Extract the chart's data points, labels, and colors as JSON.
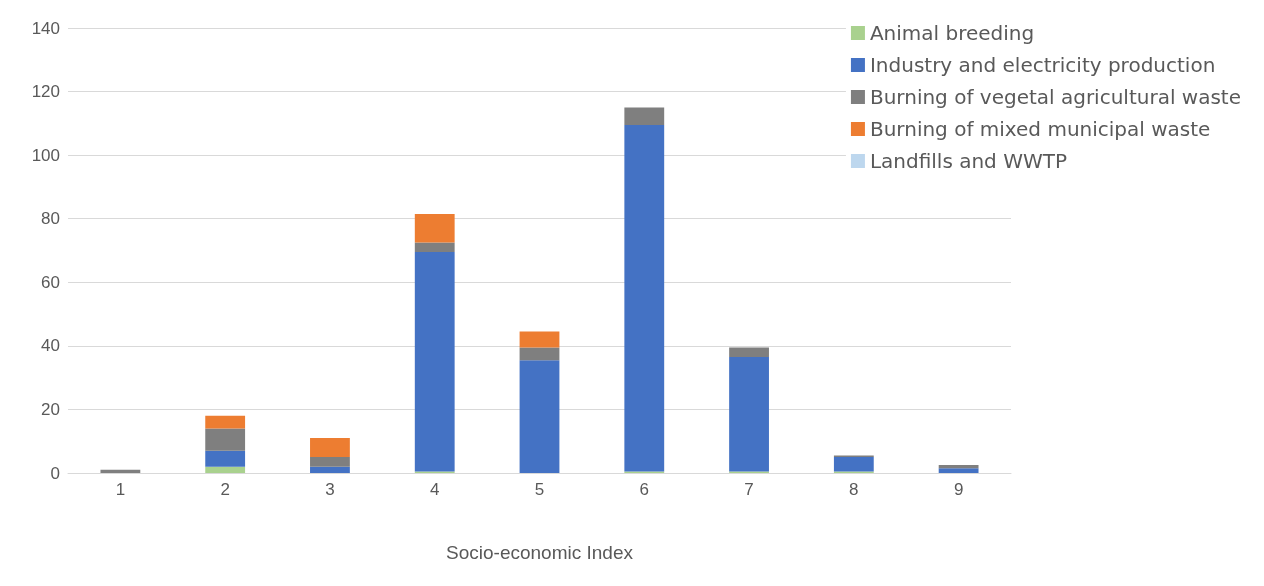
{
  "chart_data": {
    "type": "bar",
    "stacked": true,
    "xlabel": "Socio-economic Index",
    "categories": [
      "1",
      "2",
      "3",
      "4",
      "5",
      "6",
      "7",
      "8",
      "9"
    ],
    "series": [
      {
        "name": "Animal breeding",
        "color": "#a9d18e",
        "values": [
          0,
          2,
          0,
          0.5,
          0,
          0.5,
          0.5,
          0.5,
          0
        ]
      },
      {
        "name": "Industry and electricity production",
        "color": "#4472c4",
        "values": [
          0,
          5,
          2,
          69,
          35.5,
          109,
          36,
          4.5,
          1.5
        ]
      },
      {
        "name": "Burning of vegetal agricultural waste",
        "color": "#7f7f7f",
        "values": [
          1,
          7,
          3,
          3,
          4,
          5.5,
          3,
          0.5,
          1
        ]
      },
      {
        "name": "Burning of mixed municipal waste",
        "color": "#ed7d31",
        "values": [
          0,
          4,
          6,
          9,
          5,
          0,
          0,
          0,
          0
        ]
      },
      {
        "name": "Landfills and WWTP",
        "color": "#bdd7ee",
        "values": [
          0,
          0,
          0,
          0,
          0,
          0,
          0,
          0,
          0
        ]
      }
    ],
    "ylim": [
      0,
      140
    ],
    "yticks": [
      0,
      20,
      40,
      60,
      80,
      100,
      120,
      140
    ],
    "grid": "y",
    "legend": "top right"
  }
}
